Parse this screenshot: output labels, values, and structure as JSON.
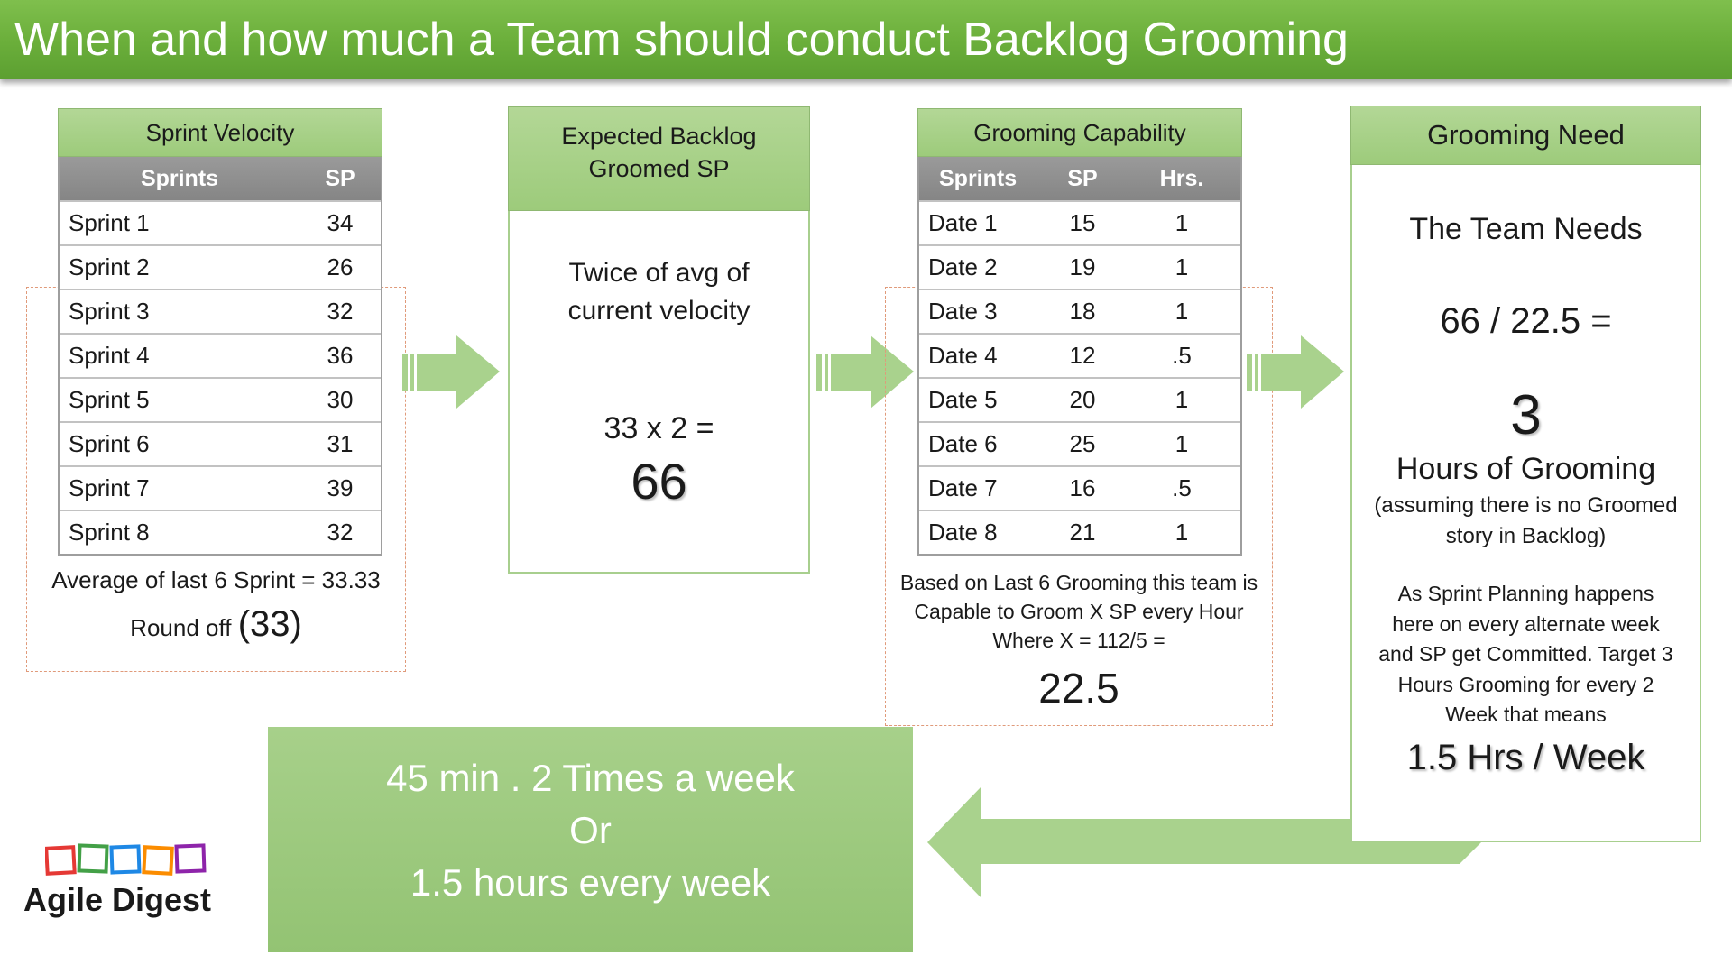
{
  "title": "When and how much a Team should conduct Backlog Grooming",
  "velocity": {
    "header": "Sprint Velocity",
    "columns": [
      "Sprints",
      "SP"
    ],
    "rows": [
      [
        "Sprint 1",
        "34"
      ],
      [
        "Sprint 2",
        "26"
      ],
      [
        "Sprint 3",
        "32"
      ],
      [
        "Sprint 4",
        "36"
      ],
      [
        "Sprint 5",
        "30"
      ],
      [
        "Sprint 6",
        "31"
      ],
      [
        "Sprint 7",
        "39"
      ],
      [
        "Sprint 8",
        "32"
      ]
    ],
    "average_text": "Average of last 6 Sprint = 33.33",
    "round_label": "Round off",
    "round_value": "(33)"
  },
  "expected": {
    "header_line1": "Expected Backlog",
    "header_line2": "Groomed SP",
    "desc_line1": "Twice of avg of",
    "desc_line2": "current velocity",
    "formula": "33 x 2 =",
    "result": "66"
  },
  "capability": {
    "header": "Grooming Capability",
    "columns": [
      "Sprints",
      "SP",
      "Hrs."
    ],
    "rows": [
      [
        "Date 1",
        "15",
        "1"
      ],
      [
        "Date 2",
        "19",
        "1"
      ],
      [
        "Date 3",
        "18",
        "1"
      ],
      [
        "Date 4",
        "12",
        ".5"
      ],
      [
        "Date 5",
        "20",
        "1"
      ],
      [
        "Date 6",
        "25",
        "1"
      ],
      [
        "Date 7",
        "16",
        ".5"
      ],
      [
        "Date 8",
        "21",
        "1"
      ]
    ],
    "note_line1": "Based on Last 6 Grooming this team is",
    "note_line2": "Capable to Groom X SP every Hour",
    "note_line3": "Where X = 112/5 =",
    "result": "22.5"
  },
  "need": {
    "header": "Grooming Need",
    "line1": "The Team Needs",
    "formula": "66 / 22.5 =",
    "result": "3",
    "hours_label": "Hours of Grooming",
    "assumption_line1": "(assuming there is no Groomed",
    "assumption_line2": "story in Backlog)",
    "planning_line1": "As Sprint Planning happens",
    "planning_line2": "here on every alternate week",
    "planning_line3": "and SP get Committed. Target 3",
    "planning_line4": "Hours Grooming for every 2",
    "planning_line5": "Week that means",
    "final": "1.5 Hrs / Week"
  },
  "summary": {
    "line1": "45 min . 2 Times a week",
    "line2": "Or",
    "line3": "1.5 hours every week"
  },
  "logo": {
    "text": "Agile Digest",
    "colors": [
      "#e53935",
      "#43a047",
      "#1e88e5",
      "#fb8c00",
      "#8e24aa"
    ]
  },
  "colors": {
    "accent_green": "#6aae3a",
    "panel_green": "#a7d08a",
    "dashed_outline": "#e09a7a"
  }
}
